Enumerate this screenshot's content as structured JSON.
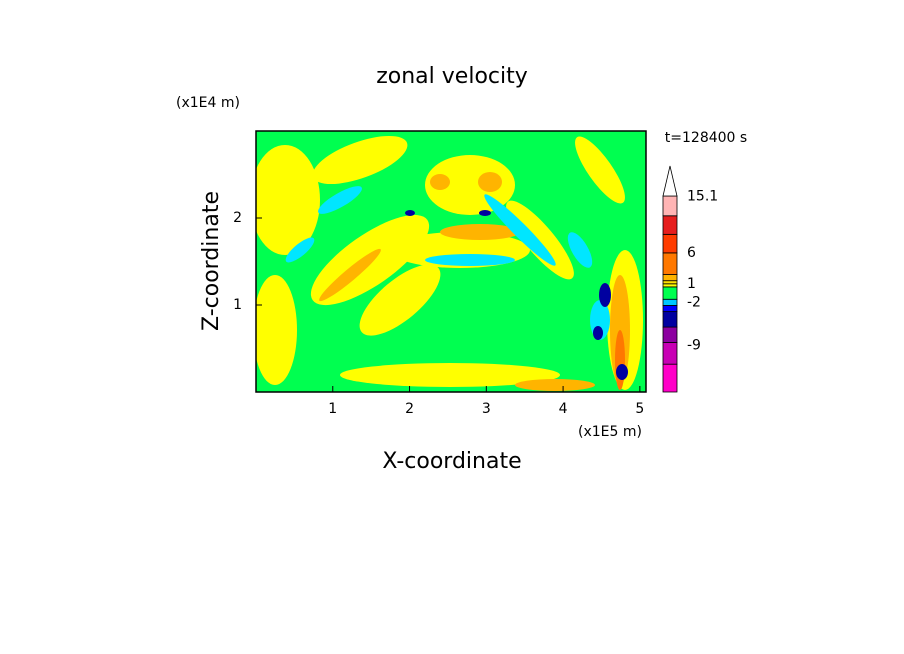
{
  "chart_data": {
    "type": "contour",
    "title": "zonal velocity",
    "xlabel": "X-coordinate",
    "ylabel": "Z-coordinate",
    "x_scale_label": "(x1E5 m)",
    "y_scale_label": "(x1E4 m)",
    "time_label": "t=128400 s",
    "xlim": [
      0,
      5.08
    ],
    "ylim": [
      0,
      3
    ],
    "xticks": [
      1,
      2,
      3,
      4,
      5
    ],
    "yticks": [
      1,
      2
    ],
    "colorbar": {
      "clim": [
        -16.5,
        15.2
      ],
      "bounds": [
        -16.5,
        -12,
        -8.5,
        -6,
        -3.5,
        -2.5,
        -1.5,
        0.5,
        1,
        1.5,
        2.5,
        6,
        9,
        12,
        15.2
      ],
      "colors": [
        "#ff00c8",
        "#c800b4",
        "#8c00a0",
        "#0000a0",
        "#0000ff",
        "#00c8ff",
        "#00ff50",
        "#ffff00",
        "#ffe100",
        "#ffb400",
        "#ff7800",
        "#ff3c00",
        "#e61e1e",
        "#ffb4b4"
      ],
      "extend_color": "#ffffff",
      "ticks": [
        15.1,
        6,
        1,
        -2,
        -9
      ]
    }
  }
}
